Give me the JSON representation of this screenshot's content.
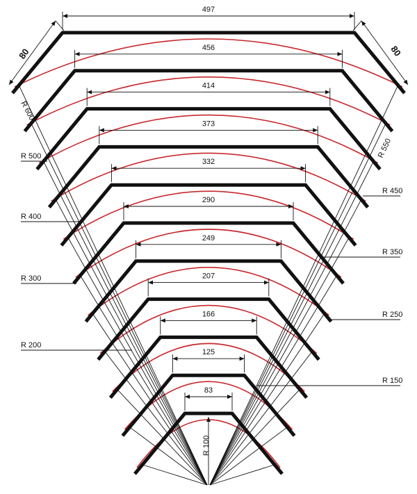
{
  "diagram": {
    "colors": {
      "profile": "#111111",
      "arc": "#c8282d",
      "line": "#111111"
    },
    "corner_labels": {
      "left": "80",
      "right": "80"
    },
    "profiles": [
      {
        "id": "p1",
        "width_label": "497"
      },
      {
        "id": "p2",
        "width_label": "456"
      },
      {
        "id": "p3",
        "width_label": "414"
      },
      {
        "id": "p4",
        "width_label": "373"
      },
      {
        "id": "p5",
        "width_label": "332"
      },
      {
        "id": "p6",
        "width_label": "290"
      },
      {
        "id": "p7",
        "width_label": "249"
      },
      {
        "id": "p8",
        "width_label": "207"
      },
      {
        "id": "p9",
        "width_label": "166"
      },
      {
        "id": "p10",
        "width_label": "125"
      },
      {
        "id": "p11",
        "width_label": "83"
      }
    ],
    "radius_labels": {
      "r600": "R 600",
      "r550": "R 550",
      "r500": "R 500",
      "r450": "R 450",
      "r400": "R 400",
      "r350": "R 350",
      "r300": "R 300",
      "r250": "R 250",
      "r200": "R 200",
      "r150": "R 150",
      "r100": "R 100"
    }
  }
}
